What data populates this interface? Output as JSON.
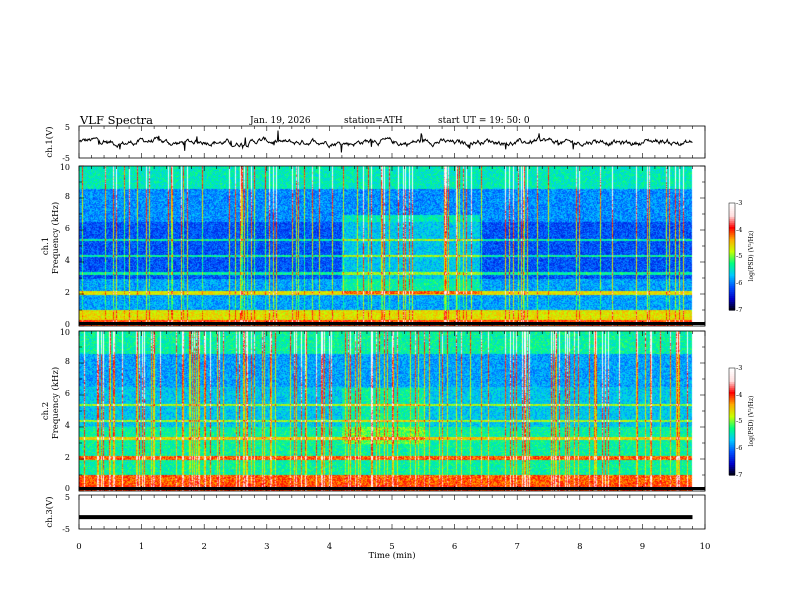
{
  "header": {
    "title": "VLF  Spectra",
    "date": "Jan.  19,  2026",
    "station": "station=ATH",
    "start": "start  UT  =    19: 50: 0"
  },
  "chart_data": {
    "type": "heatmap",
    "title": "VLF  Spectra",
    "xlabel": "Time  (min)",
    "xlim": [
      0,
      10
    ],
    "xticks": [
      "0",
      "1",
      "2",
      "3",
      "4",
      "5",
      "6",
      "7",
      "8",
      "9",
      "10"
    ],
    "panels": [
      {
        "name": "ch1-waveform",
        "type": "line",
        "ylabel": "ch.1(V)",
        "ylim": [
          -5,
          5
        ],
        "yticks": [
          "5",
          "-5"
        ],
        "baseline": 0,
        "description": "noisy waveform near 0 V with spikes"
      },
      {
        "name": "ch1-spectrogram",
        "type": "heatmap",
        "ylabel": "ch.1\nFrequency  (kHz)",
        "ylabel_lines": [
          "ch.1",
          "Frequency  (kHz)"
        ],
        "ylim": [
          0,
          10
        ],
        "yticks": [
          "0",
          "2",
          "4",
          "6",
          "8",
          "10"
        ],
        "colorbar": {
          "label": "log(PSD) (V²/Hz)",
          "range": [
            -7,
            -3
          ],
          "ticks": [
            "-3",
            "-4",
            "-5",
            "-6",
            "-7"
          ]
        }
      },
      {
        "name": "ch2-spectrogram",
        "type": "heatmap",
        "ylabel": "ch.2\nFrequency  (kHz)",
        "ylabel_lines": [
          "ch.2",
          "Frequency  (kHz)"
        ],
        "ylim": [
          0,
          10
        ],
        "yticks": [
          "0",
          "2",
          "4",
          "6",
          "8",
          "10"
        ],
        "colorbar": {
          "label": "log(PSD) (V²/Hz)",
          "range": [
            -7,
            -3
          ],
          "ticks": [
            "-3",
            "-4",
            "-5",
            "-6",
            "-7"
          ]
        }
      },
      {
        "name": "ch3-waveform",
        "type": "line",
        "ylabel": "ch.3(V)",
        "ylim": [
          -5,
          5
        ],
        "yticks": [
          "5",
          "-5"
        ],
        "baseline": -1.5,
        "description": "flat thick line near -1.5 V"
      }
    ],
    "colormap": [
      "#000000",
      "#0000c8",
      "#0050ff",
      "#00c8ff",
      "#00ff80",
      "#c8ff00",
      "#ffaa00",
      "#ff0000",
      "#ffe0e0",
      "#ffffff"
    ]
  }
}
